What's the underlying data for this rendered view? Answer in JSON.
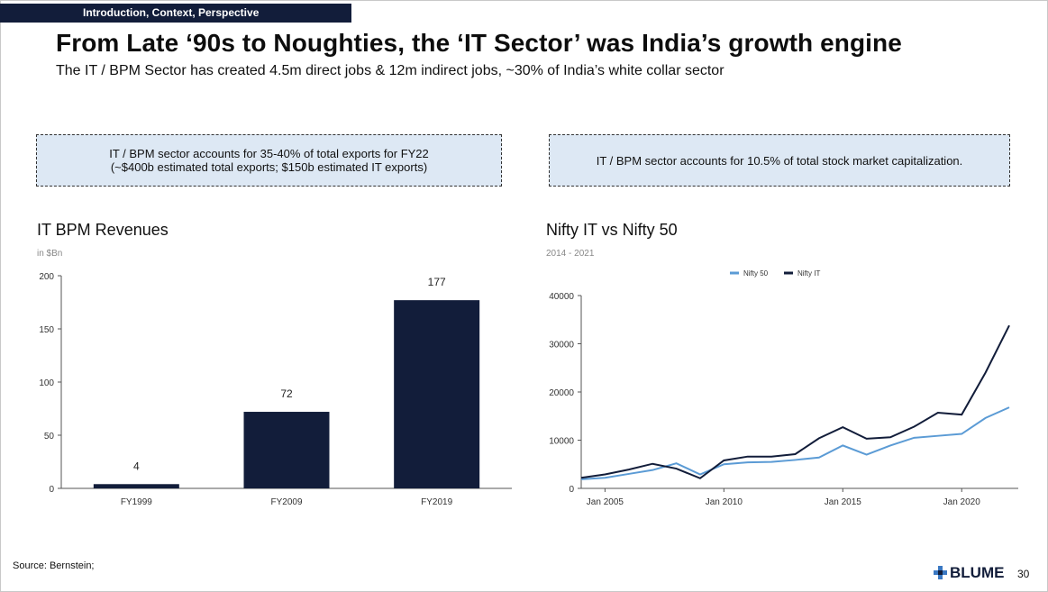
{
  "header": {
    "section_tag": "Introduction, Context, Perspective",
    "title": "From Late ‘90s to Noughties, the ‘IT Sector’ was India’s growth engine",
    "subtitle": "The IT / BPM Sector has created 4.5m direct jobs & 12m indirect jobs, ~30% of India’s white collar sector"
  },
  "callouts": {
    "left_line1": "IT / BPM sector accounts for 35-40% of total exports for FY22",
    "left_line2": "(~$400b estimated total exports; $150b estimated IT exports)",
    "right": "IT / BPM sector accounts for 10.5% of total stock market capitalization."
  },
  "chart_data": [
    {
      "type": "bar",
      "title": "IT BPM Revenues",
      "subtitle": "in $Bn",
      "categories": [
        "FY1999",
        "FY2009",
        "FY2019"
      ],
      "values": [
        4,
        72,
        177
      ],
      "data_labels": [
        "4",
        "72",
        "177"
      ],
      "ylim": [
        0,
        200
      ],
      "yticks": [
        0,
        50,
        100,
        150,
        200
      ],
      "color": "#121d3a"
    },
    {
      "type": "line",
      "title": "Nifty IT vs Nifty 50",
      "subtitle": "2014 - 2021",
      "ylim": [
        0,
        40000
      ],
      "yticks": [
        0,
        10000,
        20000,
        30000,
        40000
      ],
      "xticks": [
        "Jan 2005",
        "Jan 2010",
        "Jan 2015",
        "Jan 2020"
      ],
      "legend_position": "top-right",
      "x": [
        2004.0,
        2005.0,
        2006.0,
        2007.0,
        2008.0,
        2009.0,
        2010.0,
        2011.0,
        2012.0,
        2013.0,
        2014.0,
        2015.0,
        2016.0,
        2017.0,
        2018.0,
        2019.0,
        2020.0,
        2021.0,
        2022.0
      ],
      "series": [
        {
          "name": "Nifty 50",
          "color": "#5b9bd5",
          "values": [
            1900,
            2200,
            3000,
            3800,
            5200,
            2900,
            5000,
            5400,
            5500,
            5900,
            6400,
            8900,
            7000,
            8900,
            10500,
            10900,
            11300,
            14600,
            16800
          ]
        },
        {
          "name": "Nifty IT",
          "color": "#121d3a",
          "values": [
            2200,
            2900,
            3900,
            5100,
            4100,
            2100,
            5800,
            6600,
            6600,
            7100,
            10400,
            12700,
            10300,
            10600,
            12800,
            15700,
            15300,
            24000,
            33800
          ]
        }
      ]
    }
  ],
  "footer": {
    "source": "Source: Bernstein;",
    "logo_text": "BLUME",
    "page_number": "30"
  }
}
